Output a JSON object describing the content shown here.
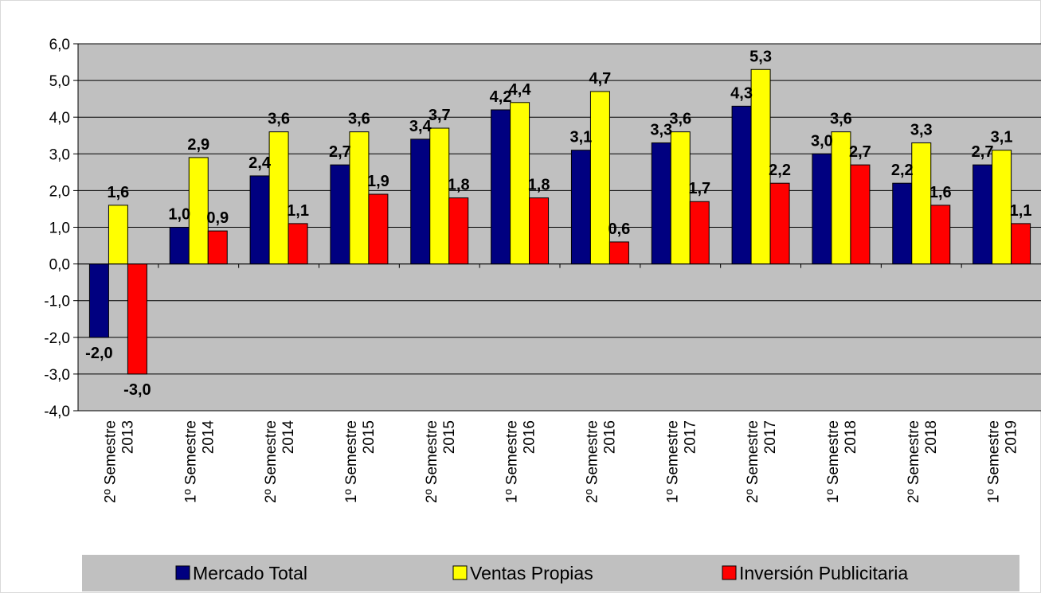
{
  "chart_data": {
    "type": "bar",
    "categories": [
      [
        "2º Semestre",
        "2013"
      ],
      [
        "1º Semestre",
        "2014"
      ],
      [
        "2º Semestre",
        "2014"
      ],
      [
        "1º Semestre",
        "2015"
      ],
      [
        "2º Semestre",
        "2015"
      ],
      [
        "1º Semestre",
        "2016"
      ],
      [
        "2º Semestre",
        "2016"
      ],
      [
        "1º Semestre",
        "2017"
      ],
      [
        "2º Semestre",
        "2017"
      ],
      [
        "1º Semestre",
        "2018"
      ],
      [
        "2º Semestre",
        "2018"
      ],
      [
        "1º Semestre",
        "2019"
      ]
    ],
    "series": [
      {
        "name": "Mercado Total",
        "color": "#000080",
        "values": [
          -2.0,
          1.0,
          2.4,
          2.7,
          3.4,
          4.2,
          3.1,
          3.3,
          4.3,
          3.0,
          2.2,
          2.7
        ]
      },
      {
        "name": "Ventas Propias",
        "color": "#ffff00",
        "values": [
          1.6,
          2.9,
          3.6,
          3.6,
          3.7,
          4.4,
          4.7,
          3.6,
          5.3,
          3.6,
          3.3,
          3.1
        ]
      },
      {
        "name": "Inversión Publicitaria",
        "color": "#ff0000",
        "values": [
          -3.0,
          0.9,
          1.1,
          1.9,
          1.8,
          1.8,
          0.6,
          1.7,
          2.2,
          2.7,
          1.6,
          1.1
        ]
      }
    ],
    "ylim": [
      -4.0,
      6.0
    ],
    "yticks": [
      "6,0",
      "5,0",
      "4,0",
      "3,0",
      "2,0",
      "1,0",
      "0,0",
      "-1,0",
      "-2,0",
      "-3,0",
      "-4,0"
    ],
    "data_labels": [
      [
        "-2,0",
        "1,6",
        "-3,0"
      ],
      [
        "1,0",
        "2,9",
        "0,9"
      ],
      [
        "2,4",
        "3,6",
        "1,1"
      ],
      [
        "2,7",
        "3,6",
        "1,9"
      ],
      [
        "3,4",
        "3,7",
        "1,8"
      ],
      [
        "4,2",
        "4,4",
        "1,8"
      ],
      [
        "3,1",
        "4,7",
        "0,6"
      ],
      [
        "3,3",
        "3,6",
        "1,7"
      ],
      [
        "4,3",
        "5,3",
        "2,2"
      ],
      [
        "3,0",
        "3,6",
        "2,7"
      ],
      [
        "2,2",
        "3,3",
        "1,6"
      ],
      [
        "2,7",
        "3,1",
        "1,1"
      ]
    ],
    "grid": true,
    "plot_background": "#c0c0c0",
    "legend_position": "bottom",
    "title": "",
    "xlabel": "",
    "ylabel": ""
  }
}
